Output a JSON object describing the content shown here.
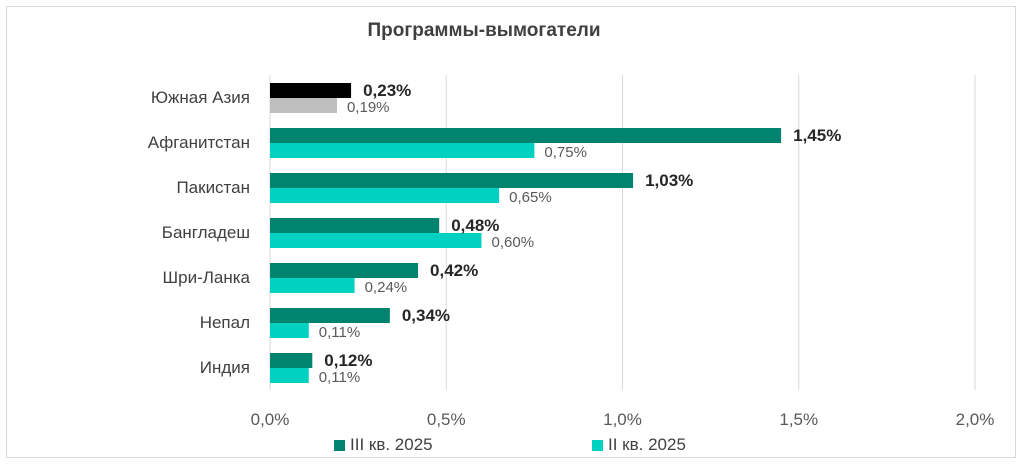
{
  "chart_data": {
    "type": "bar",
    "orientation": "horizontal",
    "title": "Программы-вымогатели",
    "categories": [
      "Южная Азия",
      "Афганитстан",
      "Пакистан",
      "Бангладеш",
      "Шри-Ланка",
      "Непал",
      "Индия"
    ],
    "series": [
      {
        "name": "III кв. 2025",
        "values": [
          0.23,
          1.45,
          1.03,
          0.48,
          0.42,
          0.34,
          0.12
        ],
        "labels": [
          "0,23%",
          "1,45%",
          "1,03%",
          "0,48%",
          "0,42%",
          "0,34%",
          "0,12%"
        ],
        "color": "#00836f",
        "highlight_color": "#000000"
      },
      {
        "name": "II кв. 2025",
        "values": [
          0.19,
          0.75,
          0.65,
          0.6,
          0.24,
          0.11,
          0.11
        ],
        "labels": [
          "0,19%",
          "0,75%",
          "0,65%",
          "0,60%",
          "0,24%",
          "0,11%",
          "0,11%"
        ],
        "color": "#00d1c1",
        "highlight_color": "#bfbfbf"
      }
    ],
    "xlim": [
      0,
      2.0
    ],
    "xticks": [
      0,
      0.5,
      1.0,
      1.5,
      2.0
    ],
    "xtick_labels": [
      "0,0%",
      "0,5%",
      "1,0%",
      "1,5%",
      "2,0%"
    ],
    "grid": true,
    "legend_position": "bottom"
  }
}
